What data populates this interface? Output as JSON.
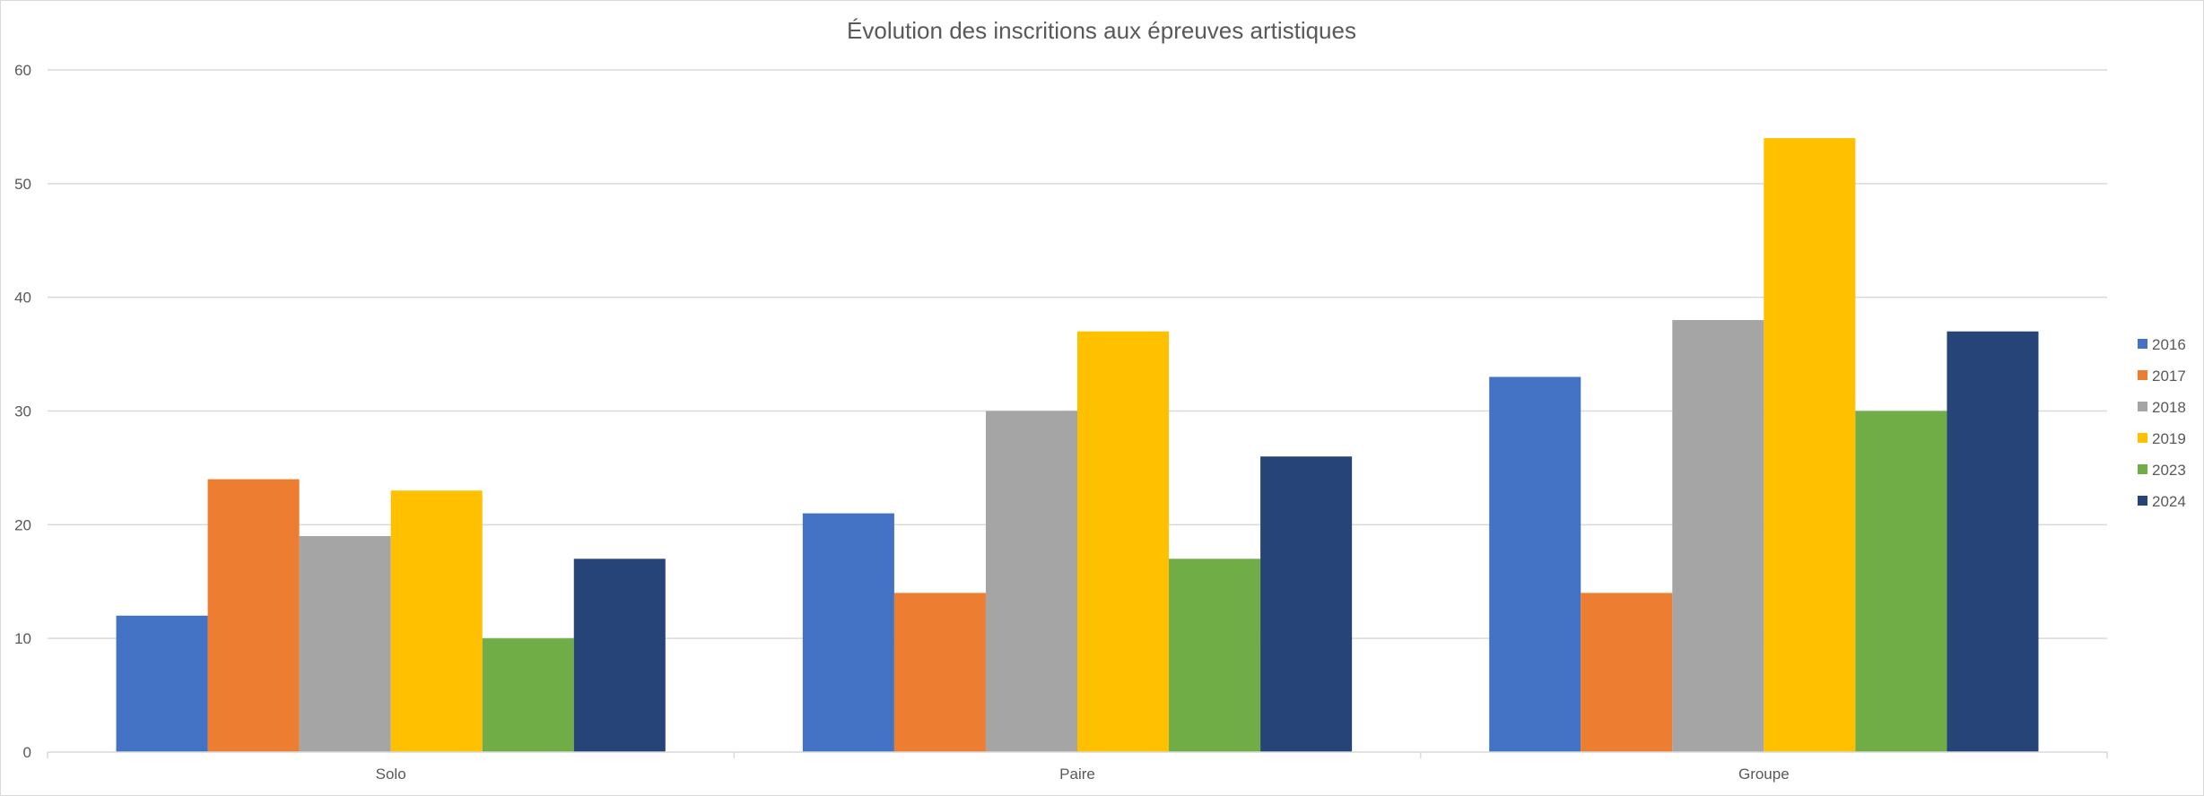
{
  "chart_data": {
    "type": "bar",
    "title": "Évolution des inscritions aux épreuves artistiques",
    "xlabel": "",
    "ylabel": "",
    "categories": [
      "Solo",
      "Paire",
      "Groupe"
    ],
    "ylim": [
      0,
      60
    ],
    "yticks": [
      0,
      10,
      20,
      30,
      40,
      50,
      60
    ],
    "grid": true,
    "legend_position": "right",
    "series": [
      {
        "name": "2016",
        "color": "#4472C4",
        "values": [
          12,
          21,
          33
        ]
      },
      {
        "name": "2017",
        "color": "#ED7D31",
        "values": [
          24,
          14,
          14
        ]
      },
      {
        "name": "2018",
        "color": "#A5A5A5",
        "values": [
          19,
          30,
          38
        ]
      },
      {
        "name": "2019",
        "color": "#FFC000",
        "values": [
          23,
          37,
          54
        ]
      },
      {
        "name": "2023",
        "color": "#70AD47",
        "values": [
          10,
          17,
          30
        ]
      },
      {
        "name": "2024",
        "color": "#264478",
        "values": [
          17,
          26,
          37
        ]
      }
    ]
  }
}
